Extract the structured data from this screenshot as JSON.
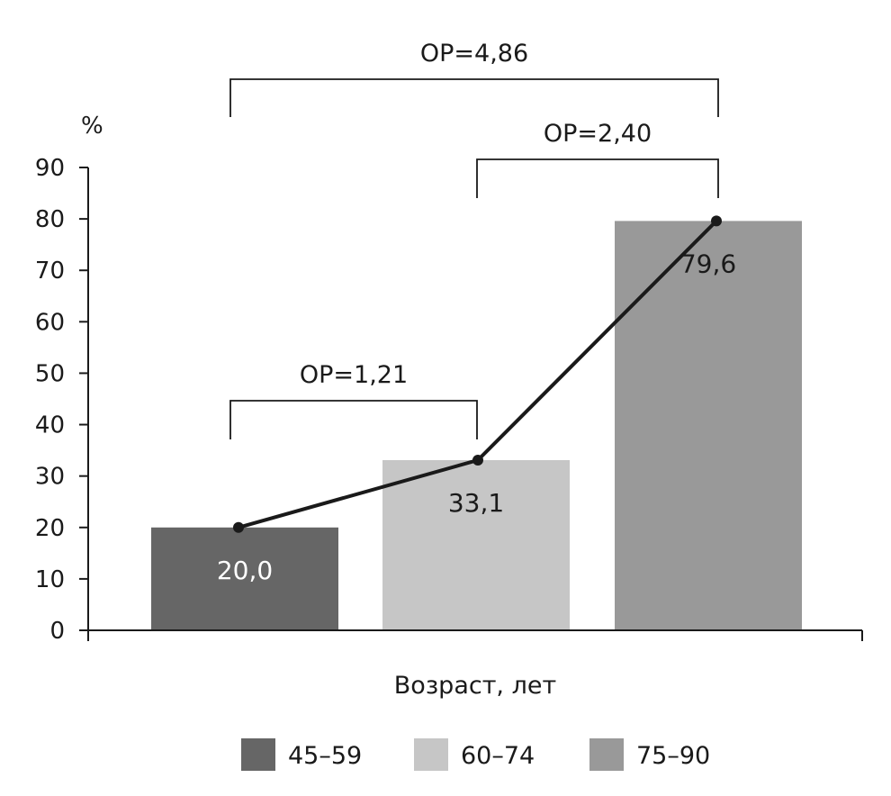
{
  "chart_data": {
    "type": "bar",
    "categories": [
      "45–59",
      "60–74",
      "75–90"
    ],
    "values": [
      20.0,
      33.1,
      79.6
    ],
    "value_labels": [
      "20,0",
      "33,1",
      "79,6"
    ],
    "colors": [
      "#666666",
      "#c6c6c6",
      "#999999"
    ],
    "trend_line": true,
    "ylim": [
      0,
      90
    ],
    "yticks": [
      0,
      10,
      20,
      30,
      40,
      50,
      60,
      70,
      80,
      90
    ],
    "y_unit": "%",
    "xlabel": "Возраст, лет",
    "grid": false,
    "legend": {
      "placement": "bottom",
      "entries": [
        "45–59",
        "60–74",
        "75–90"
      ]
    },
    "annotations": [
      {
        "text": "ОР=4,86",
        "from": 0,
        "to": 2
      },
      {
        "text": "ОР=2,40",
        "from": 1,
        "to": 2
      },
      {
        "text": "ОР=1,21",
        "from": 0,
        "to": 1
      }
    ]
  }
}
